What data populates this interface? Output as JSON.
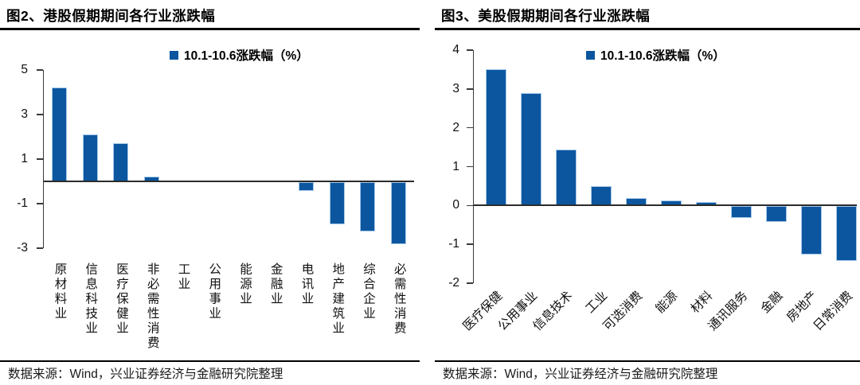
{
  "page": {
    "background": "#ffffff"
  },
  "colors": {
    "bar_fill": "#0C56A0",
    "bar_border": "#A6C9E8",
    "axis": "#3a3a3a",
    "text": "#000000"
  },
  "chart_data": [
    {
      "type": "bar",
      "title": "图2、港股假期期间各行业涨跌幅",
      "legend": "10.1-10.6涨跌幅（%）",
      "legend_position": "top-center",
      "source": "数据来源：Wind，兴业证券经济与金融研究院整理",
      "categories": [
        "原材料业",
        "信息科技业",
        "医疗保健业",
        "非必需性消费",
        "工业",
        "公用事业",
        "能源业",
        "金融业",
        "电讯业",
        "地产建筑业",
        "综合企业",
        "必需性消费"
      ],
      "values": [
        4.2,
        2.1,
        1.7,
        0.2,
        0,
        0,
        0,
        0,
        -0.4,
        -1.9,
        -2.2,
        -2.8
      ],
      "xlabel": "",
      "ylabel": "",
      "ylim": [
        -3,
        5
      ],
      "yticks": [
        5,
        3,
        1,
        -1,
        -3
      ],
      "grid": false,
      "category_label_orientation": "vertical"
    },
    {
      "type": "bar",
      "title": "图3、美股假期期间各行业涨跌幅",
      "legend": "10.1-10.6涨跌幅（%）",
      "legend_position": "top-center",
      "source": "数据来源：Wind，兴业证券经济与金融研究院整理",
      "categories": [
        "医疗保健",
        "公用事业",
        "信息技术",
        "工业",
        "可选消费",
        "能源",
        "材料",
        "通讯服务",
        "金融",
        "房地产",
        "日常消费"
      ],
      "values": [
        3.5,
        2.9,
        1.45,
        0.5,
        0.2,
        0.12,
        0.08,
        -0.3,
        -0.4,
        -1.25,
        -1.4
      ],
      "xlabel": "",
      "ylabel": "",
      "ylim": [
        -2,
        4
      ],
      "yticks": [
        4,
        3,
        2,
        1,
        0,
        -1,
        -2
      ],
      "grid": false,
      "category_label_orientation": "rotated-45"
    }
  ]
}
